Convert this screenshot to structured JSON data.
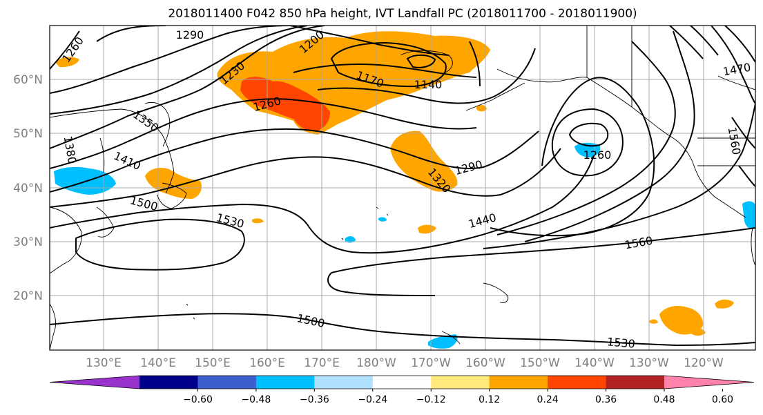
{
  "title": "2018011400 F042 850 hPa height, IVT Landfall PC (2018011700 - 2018011900)",
  "lat_labels": [
    "60°N",
    "50°N",
    "40°N",
    "30°N",
    "20°N"
  ],
  "lon_labels": [
    "130°E",
    "140°E",
    "150°E",
    "160°E",
    "170°E",
    "180°W",
    "170°W",
    "160°W",
    "150°W",
    "140°W",
    "130°W",
    "120°W"
  ],
  "contour_labels": [
    "1290",
    "1260",
    "1230",
    "1200",
    "1170",
    "1140",
    "1350",
    "1380",
    "1410",
    "1500",
    "1530",
    "1260",
    "1290",
    "1320",
    "1440",
    "1560",
    "1470",
    "1560",
    "1500",
    "1530",
    "1260"
  ],
  "colorbar": {
    "ticks": [
      "−0.60",
      "−0.48",
      "−0.36",
      "−0.24",
      "−0.12",
      "0.12",
      "0.24",
      "0.36",
      "0.48",
      "0.60"
    ],
    "colors": [
      "#9932cc",
      "#00008b",
      "#3a5fcd",
      "#00bfff",
      "#b0e2ff",
      "#ffffff",
      "#ffe87c",
      "#ffa500",
      "#ff4500",
      "#b22222",
      "#ff82ab"
    ]
  },
  "colors": {
    "orange": "#ffa500",
    "red": "#ff4500",
    "cyan": "#00bfff",
    "light_yellow": "#ffe87c"
  }
}
